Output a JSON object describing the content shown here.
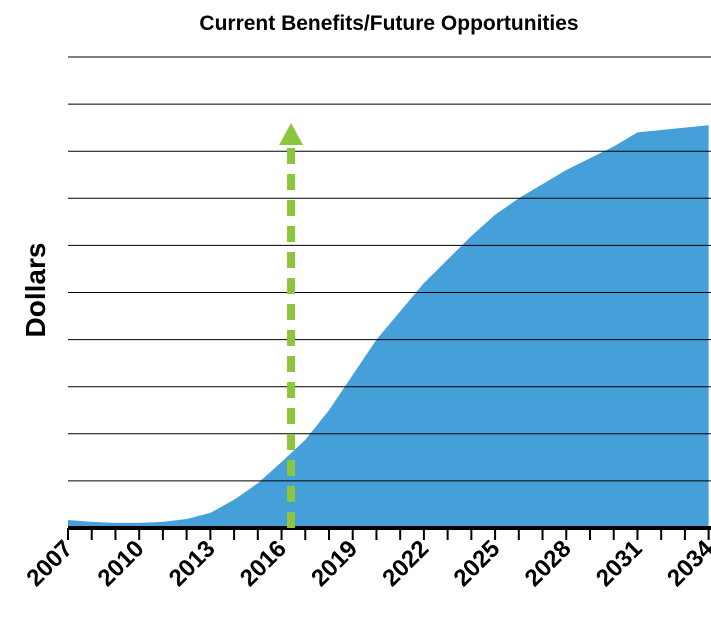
{
  "chart_data": {
    "type": "area",
    "title": "Current Benefits/Future Opportunities",
    "y_label": "Dollars",
    "x": [
      2007,
      2008,
      2009,
      2010,
      2011,
      2012,
      2013,
      2014,
      2015,
      2016,
      2017,
      2018,
      2019,
      2020,
      2021,
      2022,
      2023,
      2024,
      2025,
      2026,
      2027,
      2028,
      2029,
      2030,
      2031,
      2032,
      2033,
      2034
    ],
    "values": [
      0.17,
      0.13,
      0.11,
      0.11,
      0.13,
      0.19,
      0.32,
      0.6,
      0.95,
      1.4,
      1.87,
      2.5,
      3.25,
      4.0,
      4.6,
      5.2,
      5.7,
      6.2,
      6.65,
      7.0,
      7.3,
      7.6,
      7.85,
      8.1,
      8.4,
      8.45,
      8.5,
      8.55
    ],
    "color": "#459fd9",
    "xlim": [
      2007,
      2034.1
    ],
    "ylim": [
      0,
      10
    ],
    "xticks": [
      2007,
      2010,
      2013,
      2016,
      2019,
      2022,
      2025,
      2028,
      2031,
      2034
    ],
    "xminorticks": [
      2007,
      2008,
      2009,
      2010,
      2011,
      2012,
      2013,
      2014,
      2015,
      2016,
      2017,
      2018,
      2019,
      2020,
      2021,
      2022,
      2023,
      2024,
      2025,
      2026,
      2027,
      2028,
      2029,
      2030,
      2031,
      2032,
      2033,
      2034
    ],
    "ygrid": [
      1,
      2,
      3,
      4,
      5,
      6,
      7,
      8,
      9,
      10
    ],
    "arrow": {
      "x": 2016.4,
      "y": 8.6,
      "color": "#8cc63f"
    }
  }
}
